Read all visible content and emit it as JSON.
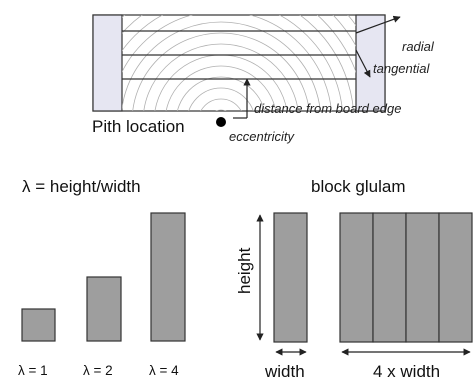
{
  "top_diagram": {
    "labels": {
      "radial": "radial",
      "tangential": "tangential",
      "distance_from_board_edge": "distance from board edge",
      "pith_location": "Pith location",
      "eccentricity": "eccentricity"
    }
  },
  "ratio_diagram": {
    "title": "λ = height/width",
    "bars": [
      {
        "label": "λ = 1",
        "ratio": 1
      },
      {
        "label": "λ = 2",
        "ratio": 2
      },
      {
        "label": "λ = 4",
        "ratio": 4
      }
    ]
  },
  "glulam_diagram": {
    "title": "block glulam",
    "height_label": "height",
    "width_label": "width",
    "multi_width_label": "4 x width",
    "lamella_count": 4
  },
  "colors": {
    "bar_fill": "#9e9e9e",
    "outline": "#333333",
    "end_block_fill": "#e6e6f2"
  }
}
